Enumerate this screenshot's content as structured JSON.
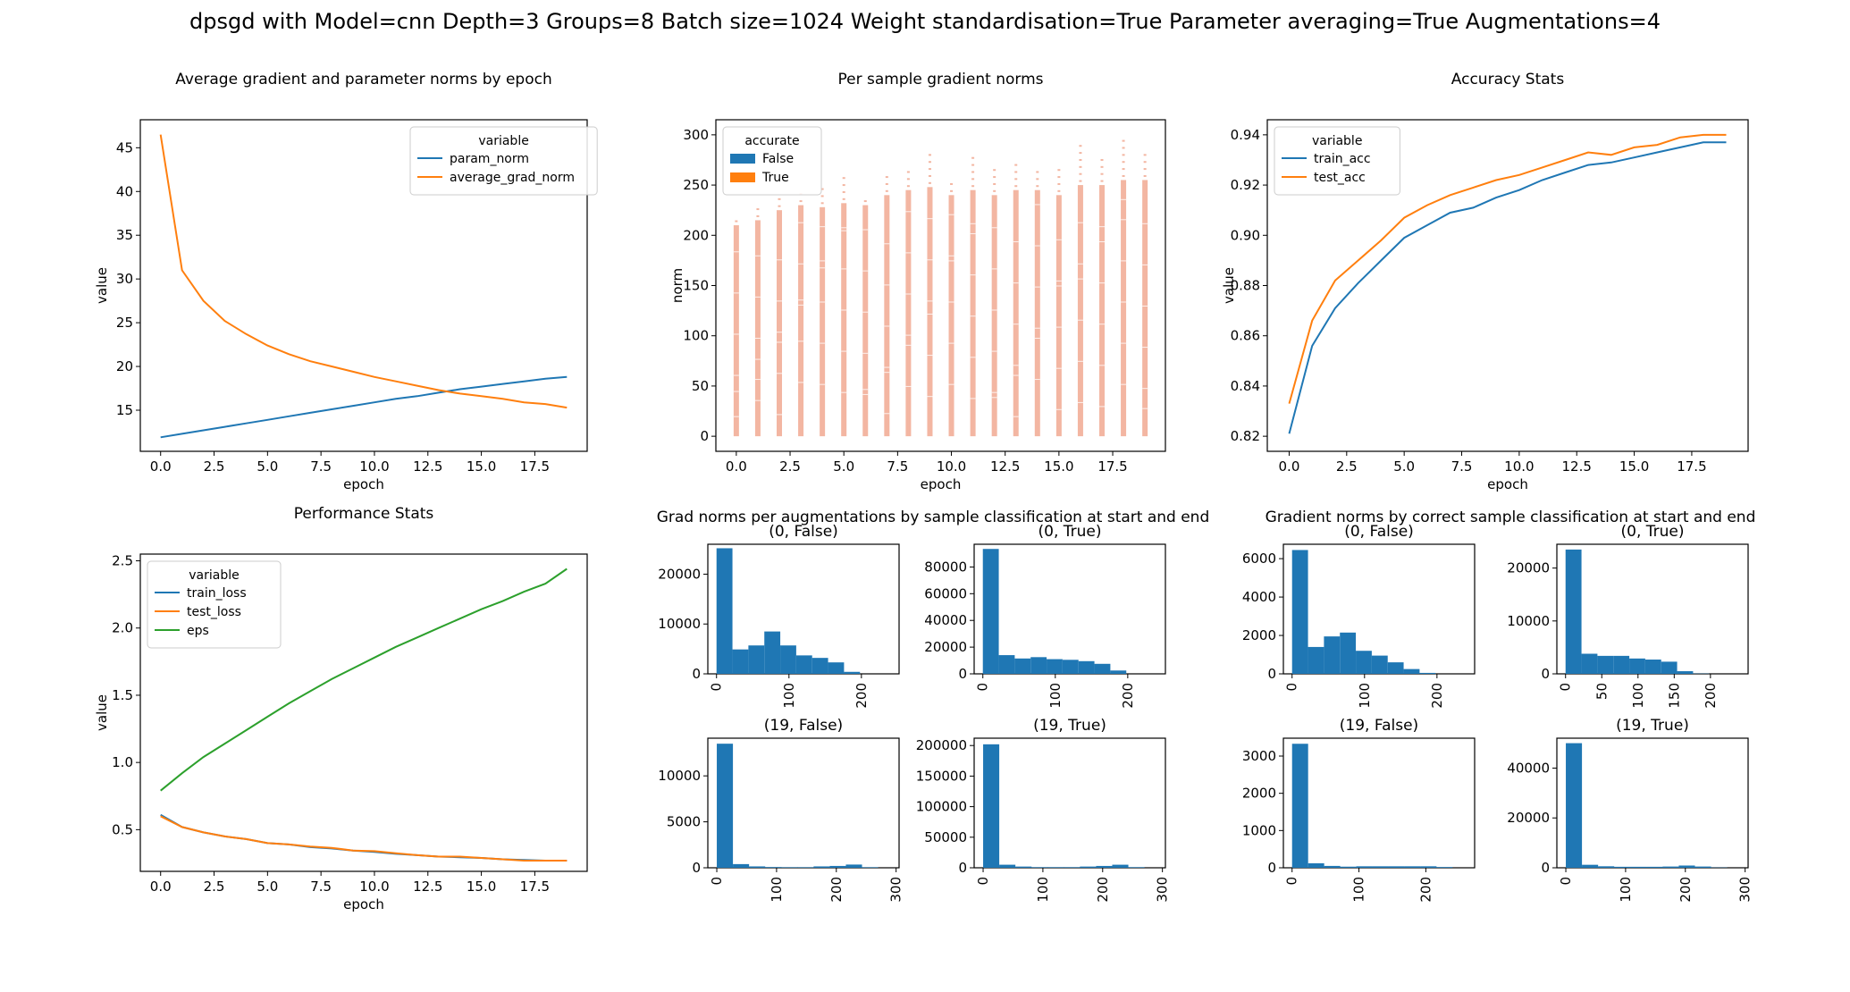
{
  "figure": {
    "title": "dpsgd with Model=cnn Depth=3 Groups=8 Batch size=1024 Weight standardisation=True Parameter averaging=True Augmentations=4"
  },
  "colors": {
    "blue": "#1f77b4",
    "orange": "#ff7f0e",
    "green": "#2ca02c",
    "salmon": "#f3b6a2"
  },
  "chart_data": [
    {
      "id": "norms",
      "type": "line",
      "title": "Average gradient and parameter norms by epoch",
      "xlabel": "epoch",
      "ylabel": "value",
      "xlim": [
        -0.95,
        19.95
      ],
      "ylim": [
        10.3,
        48.2
      ],
      "xticks": [
        0,
        2.5,
        5,
        7.5,
        10,
        12.5,
        15,
        17.5
      ],
      "xticklabels": [
        "0.0",
        "2.5",
        "5.0",
        "7.5",
        "10.0",
        "12.5",
        "15.0",
        "17.5"
      ],
      "yticks": [
        15,
        20,
        25,
        30,
        35,
        40,
        45
      ],
      "yticklabels": [
        "15",
        "20",
        "25",
        "30",
        "35",
        "40",
        "45"
      ],
      "legend": {
        "title": "variable",
        "position": "upper right"
      },
      "x": [
        0,
        1,
        2,
        3,
        4,
        5,
        6,
        7,
        8,
        9,
        10,
        11,
        12,
        13,
        14,
        15,
        16,
        17,
        18,
        19
      ],
      "series": [
        {
          "name": "param_norm",
          "color": "#1f77b4",
          "values": [
            11.9,
            12.3,
            12.7,
            13.1,
            13.5,
            13.9,
            14.3,
            14.7,
            15.1,
            15.5,
            15.9,
            16.3,
            16.6,
            17.0,
            17.4,
            17.7,
            18.0,
            18.3,
            18.6,
            18.8
          ]
        },
        {
          "name": "average_grad_norm",
          "color": "#ff7f0e",
          "values": [
            46.5,
            31.0,
            27.5,
            25.2,
            23.7,
            22.4,
            21.4,
            20.6,
            20.0,
            19.4,
            18.8,
            18.3,
            17.8,
            17.3,
            16.9,
            16.6,
            16.3,
            15.9,
            15.7,
            15.3
          ]
        }
      ]
    },
    {
      "id": "persample",
      "type": "scatter",
      "title": "Per sample gradient norms",
      "xlabel": "epoch",
      "ylabel": "norm",
      "xlim": [
        -0.95,
        19.95
      ],
      "ylim": [
        -15,
        315
      ],
      "xticks": [
        0,
        2.5,
        5,
        7.5,
        10,
        12.5,
        15,
        17.5
      ],
      "xticklabels": [
        "0.0",
        "2.5",
        "5.0",
        "7.5",
        "10.0",
        "12.5",
        "15.0",
        "17.5"
      ],
      "yticks": [
        0,
        50,
        100,
        150,
        200,
        250,
        300
      ],
      "yticklabels": [
        "0",
        "50",
        "100",
        "150",
        "200",
        "250",
        "300"
      ],
      "legend": {
        "title": "accurate",
        "position": "upper left"
      },
      "series": [
        {
          "name": "False",
          "color": "#1f77b4"
        },
        {
          "name": "True",
          "color": "#ff7f0e"
        }
      ],
      "x": [
        0,
        1,
        2,
        3,
        4,
        5,
        6,
        7,
        8,
        9,
        10,
        11,
        12,
        13,
        14,
        15,
        16,
        17,
        18,
        19
      ],
      "dense_max": [
        210,
        215,
        225,
        230,
        228,
        232,
        230,
        240,
        245,
        248,
        240,
        245,
        240,
        245,
        245,
        240,
        250,
        250,
        255,
        255
      ],
      "sparse_max": [
        220,
        230,
        240,
        245,
        250,
        260,
        240,
        260,
        265,
        280,
        255,
        280,
        270,
        270,
        265,
        270,
        290,
        280,
        300,
        285
      ]
    },
    {
      "id": "accuracy",
      "type": "line",
      "title": "Accuracy Stats",
      "xlabel": "epoch",
      "ylabel": "value",
      "xlim": [
        -0.95,
        19.95
      ],
      "ylim": [
        0.814,
        0.946
      ],
      "xticks": [
        0,
        2.5,
        5,
        7.5,
        10,
        12.5,
        15,
        17.5
      ],
      "xticklabels": [
        "0.0",
        "2.5",
        "5.0",
        "7.5",
        "10.0",
        "12.5",
        "15.0",
        "17.5"
      ],
      "yticks": [
        0.82,
        0.84,
        0.86,
        0.88,
        0.9,
        0.92,
        0.94
      ],
      "yticklabels": [
        "0.82",
        "0.84",
        "0.86",
        "0.88",
        "0.90",
        "0.92",
        "0.94"
      ],
      "legend": {
        "title": "variable",
        "position": "upper left"
      },
      "x": [
        0,
        1,
        2,
        3,
        4,
        5,
        6,
        7,
        8,
        9,
        10,
        11,
        12,
        13,
        14,
        15,
        16,
        17,
        18,
        19
      ],
      "series": [
        {
          "name": "train_acc",
          "color": "#1f77b4",
          "values": [
            0.821,
            0.856,
            0.871,
            0.881,
            0.89,
            0.899,
            0.904,
            0.909,
            0.911,
            0.915,
            0.918,
            0.922,
            0.925,
            0.928,
            0.929,
            0.931,
            0.933,
            0.935,
            0.937,
            0.937
          ]
        },
        {
          "name": "test_acc",
          "color": "#ff7f0e",
          "values": [
            0.833,
            0.866,
            0.882,
            0.89,
            0.898,
            0.907,
            0.912,
            0.916,
            0.919,
            0.922,
            0.924,
            0.927,
            0.93,
            0.933,
            0.932,
            0.935,
            0.936,
            0.939,
            0.94,
            0.94
          ]
        }
      ]
    },
    {
      "id": "performance",
      "type": "line",
      "title": "Performance Stats",
      "xlabel": "epoch",
      "ylabel": "value",
      "xlim": [
        -0.95,
        19.95
      ],
      "ylim": [
        0.19,
        2.55
      ],
      "xticks": [
        0,
        2.5,
        5,
        7.5,
        10,
        12.5,
        15,
        17.5
      ],
      "xticklabels": [
        "0.0",
        "2.5",
        "5.0",
        "7.5",
        "10.0",
        "12.5",
        "15.0",
        "17.5"
      ],
      "yticks": [
        0.5,
        1.0,
        1.5,
        2.0,
        2.5
      ],
      "yticklabels": [
        "0.5",
        "1.0",
        "1.5",
        "2.0",
        "2.5"
      ],
      "legend": {
        "title": "variable",
        "position": "upper left"
      },
      "x": [
        0,
        1,
        2,
        3,
        4,
        5,
        6,
        7,
        8,
        9,
        10,
        11,
        12,
        13,
        14,
        15,
        16,
        17,
        18,
        19
      ],
      "series": [
        {
          "name": "train_loss",
          "color": "#1f77b4",
          "values": [
            0.61,
            0.52,
            0.48,
            0.45,
            0.43,
            0.4,
            0.39,
            0.37,
            0.36,
            0.345,
            0.335,
            0.32,
            0.31,
            0.3,
            0.295,
            0.29,
            0.28,
            0.275,
            0.27,
            0.27
          ]
        },
        {
          "name": "test_loss",
          "color": "#ff7f0e",
          "values": [
            0.6,
            0.52,
            0.48,
            0.45,
            0.43,
            0.4,
            0.39,
            0.375,
            0.365,
            0.345,
            0.34,
            0.325,
            0.31,
            0.3,
            0.3,
            0.29,
            0.28,
            0.27,
            0.27,
            0.27
          ]
        },
        {
          "name": "eps",
          "color": "#2ca02c",
          "values": [
            0.79,
            0.92,
            1.04,
            1.14,
            1.24,
            1.34,
            1.44,
            1.53,
            1.62,
            1.7,
            1.78,
            1.86,
            1.93,
            2.0,
            2.07,
            2.14,
            2.2,
            2.27,
            2.33,
            2.44
          ]
        }
      ]
    },
    {
      "id": "aug_hists",
      "type": "bar",
      "title": "Grad norms per augmentations by sample classification at start and end",
      "panels": [
        {
          "title": "(0, False)",
          "xlim": [
            -12,
            252
          ],
          "xticks": [
            0,
            100,
            200
          ],
          "xticklabels": [
            "0",
            "100",
            "200"
          ],
          "yticks": [
            0,
            10000,
            20000
          ],
          "yticklabels": [
            "0",
            "10000",
            "20000"
          ],
          "ylim": [
            0,
            26000
          ],
          "bins": [
            0,
            22,
            44,
            66,
            88,
            110,
            132,
            154,
            176,
            198,
            220
          ],
          "counts": [
            25200,
            4900,
            5700,
            8500,
            5700,
            3700,
            3200,
            2300,
            400,
            0
          ]
        },
        {
          "title": "(0, True)",
          "xlim": [
            -12,
            252
          ],
          "xticks": [
            0,
            100,
            200
          ],
          "xticklabels": [
            "0",
            "100",
            "200"
          ],
          "yticks": [
            0,
            20000,
            40000,
            60000,
            80000
          ],
          "yticklabels": [
            "0",
            "20000",
            "40000",
            "60000",
            "80000"
          ],
          "ylim": [
            0,
            97000
          ],
          "bins": [
            0,
            22,
            44,
            66,
            88,
            110,
            132,
            154,
            176,
            198,
            220
          ],
          "counts": [
            93500,
            14000,
            11500,
            12500,
            11000,
            10500,
            9500,
            7500,
            2500,
            0
          ]
        },
        {
          "title": "(19, False)",
          "xlim": [
            -15,
            305
          ],
          "xticks": [
            0,
            100,
            200,
            300
          ],
          "xticklabels": [
            "0",
            "100",
            "200",
            "300"
          ],
          "yticks": [
            0,
            5000,
            10000
          ],
          "yticklabels": [
            "0",
            "5000",
            "10000"
          ],
          "ylim": [
            0,
            14100
          ],
          "bins": [
            0,
            27,
            54,
            81,
            108,
            135,
            162,
            189,
            216,
            243,
            270
          ],
          "counts": [
            13500,
            400,
            150,
            80,
            60,
            60,
            150,
            200,
            350,
            60
          ]
        },
        {
          "title": "(19, True)",
          "xlim": [
            -15,
            305
          ],
          "xticks": [
            0,
            100,
            200,
            300
          ],
          "xticklabels": [
            "0",
            "100",
            "200",
            "300"
          ],
          "yticks": [
            0,
            50000,
            100000,
            150000,
            200000
          ],
          "yticklabels": [
            "0",
            "50000",
            "100000",
            "150000",
            "200000"
          ],
          "ylim": [
            0,
            212000
          ],
          "bins": [
            0,
            27,
            54,
            81,
            108,
            135,
            162,
            189,
            216,
            243,
            270
          ],
          "counts": [
            202000,
            5000,
            2000,
            1000,
            1000,
            1000,
            2000,
            3000,
            5000,
            1000
          ]
        }
      ]
    },
    {
      "id": "correct_hists",
      "type": "bar",
      "title": "Gradient norms by correct sample classification at start and end",
      "panels": [
        {
          "title": "(0, False)",
          "xlim": [
            -12,
            252
          ],
          "xticks": [
            0,
            100,
            200
          ],
          "xticklabels": [
            "0",
            "100",
            "200"
          ],
          "yticks": [
            0,
            2000,
            4000,
            6000
          ],
          "yticklabels": [
            "0",
            "2000",
            "4000",
            "6000"
          ],
          "ylim": [
            0,
            6750
          ],
          "bins": [
            0,
            22,
            44,
            66,
            88,
            110,
            132,
            154,
            176,
            198,
            220
          ],
          "counts": [
            6450,
            1400,
            1950,
            2150,
            1200,
            950,
            600,
            250,
            50,
            0
          ]
        },
        {
          "title": "(0, True)",
          "xlim": [
            -12,
            252
          ],
          "xticks": [
            0,
            50,
            100,
            150,
            200
          ],
          "xticklabels": [
            "0",
            "50",
            "100",
            "150",
            "200"
          ],
          "yticks": [
            0,
            10000,
            20000
          ],
          "yticklabels": [
            "0",
            "10000",
            "20000"
          ],
          "ylim": [
            0,
            24500
          ],
          "bins": [
            0,
            22,
            44,
            66,
            88,
            110,
            132,
            154,
            176,
            198,
            220
          ],
          "counts": [
            23500,
            3800,
            3400,
            3400,
            2900,
            2700,
            2300,
            500,
            50,
            0
          ]
        },
        {
          "title": "(19, False)",
          "xlim": [
            -13,
            273
          ],
          "xticks": [
            0,
            100,
            200
          ],
          "xticklabels": [
            "0",
            "100",
            "200"
          ],
          "yticks": [
            0,
            1000,
            2000,
            3000
          ],
          "yticklabels": [
            "0",
            "1000",
            "2000",
            "3000"
          ],
          "ylim": [
            0,
            3480
          ],
          "bins": [
            0,
            24,
            48,
            72,
            96,
            120,
            144,
            168,
            192,
            216,
            240
          ],
          "counts": [
            3330,
            120,
            50,
            30,
            40,
            40,
            40,
            40,
            40,
            20
          ]
        },
        {
          "title": "(19, True)",
          "xlim": [
            -15,
            305
          ],
          "xticks": [
            0,
            100,
            200,
            300
          ],
          "xticklabels": [
            "0",
            "100",
            "200",
            "300"
          ],
          "yticks": [
            0,
            20000,
            40000
          ],
          "yticklabels": [
            "0",
            "20000",
            "40000"
          ],
          "ylim": [
            0,
            52000
          ],
          "bins": [
            0,
            27,
            54,
            81,
            108,
            135,
            162,
            189,
            216,
            243,
            270
          ],
          "counts": [
            50000,
            1200,
            600,
            400,
            400,
            400,
            500,
            900,
            500,
            100
          ]
        }
      ]
    }
  ]
}
